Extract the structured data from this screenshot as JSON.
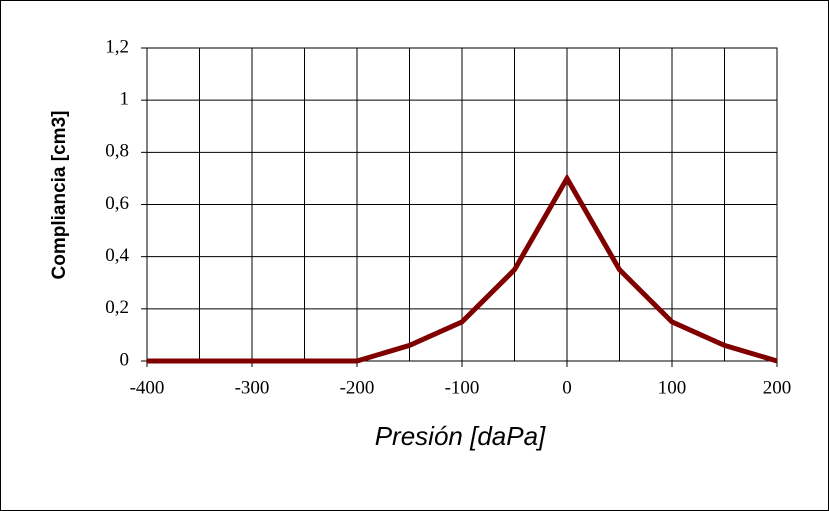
{
  "chart_data": {
    "type": "line",
    "x_label": "Presión [daPa]",
    "y_label": "Compliancia [cm3]",
    "x": [
      -400,
      -350,
      -300,
      -250,
      -200,
      -150,
      -100,
      -50,
      0,
      50,
      100,
      150,
      200
    ],
    "series": [
      {
        "color": "#800000",
        "values": [
          0,
          0,
          0,
          0,
          0,
          0.06,
          0.15,
          0.35,
          0.7,
          0.35,
          0.15,
          0.06,
          0
        ]
      }
    ],
    "xlim": [
      -400,
      200
    ],
    "xticks": [
      -400,
      -300,
      -200,
      -100,
      0,
      100,
      200
    ],
    "ylim": [
      0,
      1.2
    ],
    "yticks": [
      0,
      {
        "value": 0.2,
        "label": "0,2"
      },
      {
        "value": 0.4,
        "label": "0,4"
      },
      {
        "value": 0.6,
        "label": "0,6"
      },
      {
        "value": 0.8,
        "label": "0,8"
      },
      1,
      {
        "value": 1.2,
        "label": "1,2"
      }
    ],
    "grid": true
  }
}
